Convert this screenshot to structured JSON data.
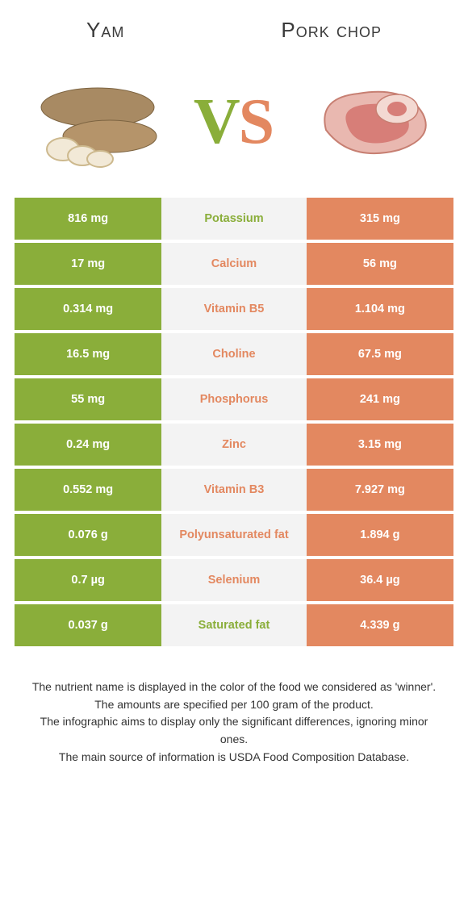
{
  "colors": {
    "left": "#8aae3a",
    "right": "#e38860",
    "mid_bg": "#f3f3f3",
    "text": "#333333"
  },
  "header": {
    "left_title": "Yam",
    "right_title": "Pork chop",
    "vs_left_letter": "V",
    "vs_right_letter": "S"
  },
  "rows": [
    {
      "left": "816 mg",
      "label": "Potassium",
      "right": "315 mg",
      "winner": "left"
    },
    {
      "left": "17 mg",
      "label": "Calcium",
      "right": "56 mg",
      "winner": "right"
    },
    {
      "left": "0.314 mg",
      "label": "Vitamin B5",
      "right": "1.104 mg",
      "winner": "right"
    },
    {
      "left": "16.5 mg",
      "label": "Choline",
      "right": "67.5 mg",
      "winner": "right"
    },
    {
      "left": "55 mg",
      "label": "Phosphorus",
      "right": "241 mg",
      "winner": "right"
    },
    {
      "left": "0.24 mg",
      "label": "Zinc",
      "right": "3.15 mg",
      "winner": "right"
    },
    {
      "left": "0.552 mg",
      "label": "Vitamin B3",
      "right": "7.927 mg",
      "winner": "right"
    },
    {
      "left": "0.076 g",
      "label": "Polyunsaturated fat",
      "right": "1.894 g",
      "winner": "right"
    },
    {
      "left": "0.7 µg",
      "label": "Selenium",
      "right": "36.4 µg",
      "winner": "right"
    },
    {
      "left": "0.037 g",
      "label": "Saturated fat",
      "right": "4.339 g",
      "winner": "left"
    }
  ],
  "footer": {
    "line1": "The nutrient name is displayed in the color of the food we considered as 'winner'.",
    "line2": "The amounts are specified per 100 gram of the product.",
    "line3": "The infographic aims to display only the significant differences, ignoring minor ones.",
    "line4": "The main source of information is USDA Food Composition Database."
  }
}
